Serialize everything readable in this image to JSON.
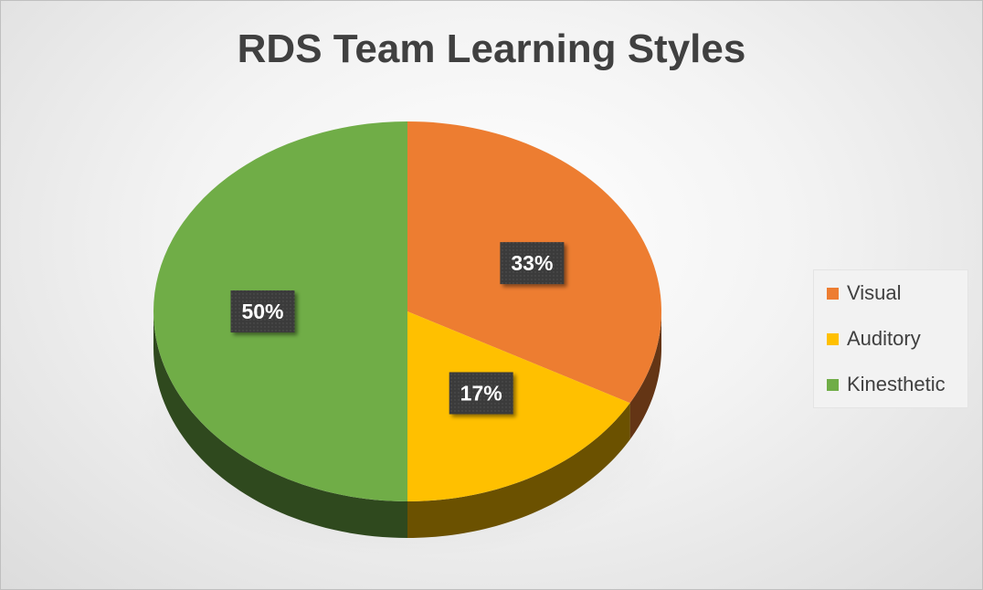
{
  "chart_data": {
    "type": "pie",
    "title": "RDS Team Learning Styles",
    "categories": [
      "Visual",
      "Auditory",
      "Kinesthetic"
    ],
    "values": [
      33,
      17,
      50
    ],
    "data_labels": [
      "33%",
      "17%",
      "50%"
    ],
    "colors": [
      "#ED7D31",
      "#FFC000",
      "#70AD47"
    ],
    "style": "3D pie",
    "legend_position": "right"
  }
}
